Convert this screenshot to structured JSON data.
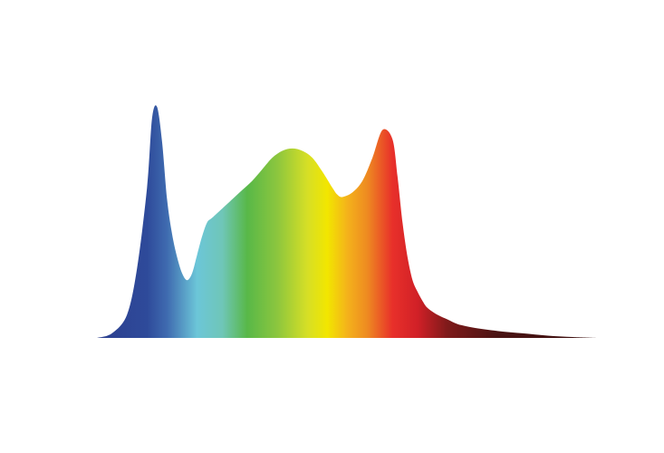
{
  "chart_data": {
    "type": "area",
    "title": "",
    "xlabel": "",
    "ylabel": "",
    "grid": false,
    "legend": "none",
    "axes_visible": false,
    "xlim": [
      0,
      100
    ],
    "ylim": [
      0,
      100
    ],
    "x": [
      0,
      3,
      6,
      8,
      10,
      11,
      12,
      13,
      14,
      15,
      16,
      17,
      18,
      19,
      20,
      21,
      22,
      23,
      25,
      27,
      29,
      31,
      33,
      35,
      37,
      39,
      41,
      43,
      45,
      47,
      48,
      49,
      51,
      53,
      55,
      57,
      59,
      60,
      61,
      62,
      63,
      64,
      65,
      66,
      68,
      70,
      72,
      75,
      80,
      85,
      90,
      95,
      100
    ],
    "values": [
      0,
      2,
      10,
      30,
      65,
      95,
      100,
      85,
      60,
      45,
      35,
      28,
      25,
      28,
      36,
      44,
      50,
      52,
      56,
      60,
      64,
      68,
      73,
      78,
      81,
      82,
      81,
      78,
      72,
      65,
      62,
      61,
      63,
      68,
      78,
      90,
      86,
      70,
      50,
      35,
      25,
      20,
      16,
      13,
      10,
      8,
      6,
      4.5,
      3,
      2,
      1,
      0.4,
      0
    ],
    "gradient_stops": [
      {
        "x": 0,
        "color": "#2c3f8f"
      },
      {
        "x": 10,
        "color": "#2e4a9a"
      },
      {
        "x": 14,
        "color": "#3f6bb0"
      },
      {
        "x": 20,
        "color": "#6cc6d8"
      },
      {
        "x": 25,
        "color": "#6fc6b8"
      },
      {
        "x": 30,
        "color": "#58b848"
      },
      {
        "x": 36,
        "color": "#8cc63e"
      },
      {
        "x": 42,
        "color": "#d6df26"
      },
      {
        "x": 46,
        "color": "#f2e600"
      },
      {
        "x": 50,
        "color": "#f4b21b"
      },
      {
        "x": 54,
        "color": "#ee8a21"
      },
      {
        "x": 59,
        "color": "#e8302a"
      },
      {
        "x": 64,
        "color": "#d12027"
      },
      {
        "x": 70,
        "color": "#7e1a1a"
      },
      {
        "x": 80,
        "color": "#4a1313"
      },
      {
        "x": 100,
        "color": "#3b0f0f"
      }
    ]
  }
}
